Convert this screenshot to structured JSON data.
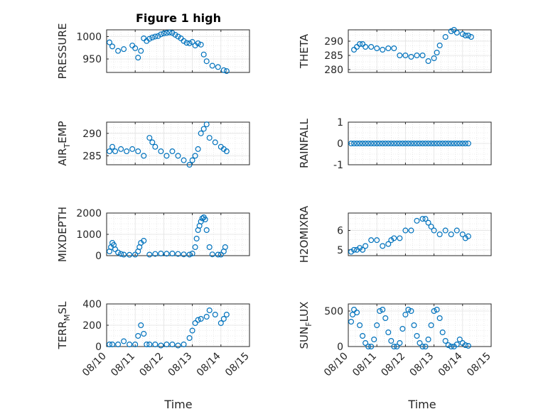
{
  "figure": {
    "title": "Figure 1 high",
    "xlabel": "Time",
    "x_ticklabels": [
      "08/10",
      "08/11",
      "08/12",
      "08/13",
      "08/14",
      "08/15"
    ],
    "marker_color": "#0072BD"
  },
  "chart_data": [
    {
      "id": "pressure",
      "type": "scatter",
      "ylabel": "PRESSURE",
      "xlim": [
        0,
        5
      ],
      "ylim": [
        920,
        1015
      ],
      "yticks": [
        950,
        1000
      ],
      "x": [
        0.1,
        0.2,
        0.4,
        0.6,
        0.9,
        1.0,
        1.1,
        1.2,
        1.3,
        1.4,
        1.5,
        1.6,
        1.7,
        1.8,
        1.9,
        2.0,
        2.1,
        2.2,
        2.3,
        2.4,
        2.5,
        2.6,
        2.7,
        2.8,
        2.9,
        3.0,
        3.1,
        3.2,
        3.3,
        3.4,
        3.5,
        3.7,
        3.9,
        4.1,
        4.2
      ],
      "y": [
        987,
        978,
        968,
        972,
        980,
        974,
        953,
        968,
        996,
        990,
        995,
        998,
        1000,
        1001,
        1005,
        1007,
        1008,
        1009,
        1008,
        1004,
        1000,
        996,
        990,
        986,
        985,
        988,
        980,
        985,
        982,
        960,
        945,
        935,
        932,
        925,
        923
      ]
    },
    {
      "id": "theta",
      "type": "scatter",
      "ylabel": "THETA",
      "xlim": [
        0,
        5
      ],
      "ylim": [
        279,
        294
      ],
      "yticks": [
        280,
        285,
        290
      ],
      "x": [
        0.2,
        0.3,
        0.4,
        0.5,
        0.6,
        0.8,
        1.0,
        1.2,
        1.4,
        1.6,
        1.8,
        2.0,
        2.2,
        2.4,
        2.6,
        2.8,
        3.0,
        3.1,
        3.2,
        3.4,
        3.6,
        3.7,
        3.8,
        4.0,
        4.1,
        4.2,
        4.3
      ],
      "y": [
        287,
        288,
        289,
        289,
        288,
        288,
        287.5,
        287,
        287.5,
        287.5,
        285,
        285,
        284.5,
        285,
        285,
        283,
        284,
        286,
        288.5,
        291.5,
        293.5,
        294,
        293,
        292.5,
        292,
        292,
        291.5
      ]
    },
    {
      "id": "air_temp",
      "type": "scatter",
      "ylabel_main": "AIR",
      "ylabel_sub": "T",
      "ylabel_rest": "EMP",
      "xlim": [
        0,
        5
      ],
      "ylim": [
        283,
        292.5
      ],
      "yticks": [
        285,
        290
      ],
      "x": [
        0.1,
        0.2,
        0.3,
        0.5,
        0.7,
        0.9,
        1.1,
        1.3,
        1.5,
        1.6,
        1.7,
        1.9,
        2.1,
        2.3,
        2.5,
        2.7,
        2.9,
        3.0,
        3.1,
        3.2,
        3.3,
        3.4,
        3.5,
        3.6,
        3.8,
        4.0,
        4.1,
        4.2
      ],
      "y": [
        286,
        287,
        286,
        286.5,
        286,
        286.5,
        286,
        285,
        289,
        288,
        287,
        286,
        285,
        286,
        285,
        284,
        283,
        284,
        285,
        286.5,
        290,
        291,
        292,
        289,
        288,
        287,
        286.5,
        286
      ]
    },
    {
      "id": "rainfall",
      "type": "scatter",
      "ylabel": "RAINFALL",
      "xlim": [
        0,
        5
      ],
      "ylim": [
        -1,
        1
      ],
      "yticks": [
        -1,
        0,
        1
      ],
      "x": [
        0.1,
        0.2,
        0.3,
        0.4,
        0.5,
        0.6,
        0.7,
        0.8,
        0.9,
        1.0,
        1.1,
        1.2,
        1.3,
        1.4,
        1.5,
        1.6,
        1.7,
        1.8,
        1.9,
        2.0,
        2.1,
        2.2,
        2.3,
        2.4,
        2.5,
        2.6,
        2.7,
        2.8,
        2.9,
        3.0,
        3.1,
        3.2,
        3.3,
        3.4,
        3.5,
        3.6,
        3.7,
        3.8,
        3.9,
        4.0,
        4.1,
        4.2
      ],
      "y": [
        0,
        0,
        0,
        0,
        0,
        0,
        0,
        0,
        0,
        0,
        0,
        0,
        0,
        0,
        0,
        0,
        0,
        0,
        0,
        0,
        0,
        0,
        0,
        0,
        0,
        0,
        0,
        0,
        0,
        0,
        0,
        0,
        0,
        0,
        0,
        0,
        0,
        0,
        0,
        0,
        0,
        0
      ]
    },
    {
      "id": "mixdepth",
      "type": "scatter",
      "ylabel": "MIXDEPTH",
      "xlim": [
        0,
        5
      ],
      "ylim": [
        0,
        2000
      ],
      "yticks": [
        0,
        1000,
        2000
      ],
      "x": [
        0.1,
        0.15,
        0.2,
        0.25,
        0.3,
        0.4,
        0.5,
        0.6,
        0.8,
        1.0,
        1.1,
        1.15,
        1.2,
        1.3,
        1.5,
        1.7,
        1.9,
        2.1,
        2.3,
        2.5,
        2.7,
        2.9,
        3.0,
        3.1,
        3.15,
        3.2,
        3.25,
        3.3,
        3.35,
        3.4,
        3.45,
        3.5,
        3.6,
        3.7,
        3.9,
        4.0,
        4.1,
        4.15
      ],
      "y": [
        200,
        400,
        600,
        500,
        300,
        150,
        80,
        50,
        40,
        50,
        200,
        400,
        600,
        700,
        50,
        80,
        100,
        90,
        100,
        80,
        60,
        50,
        100,
        400,
        800,
        1200,
        1400,
        1600,
        1750,
        1800,
        1700,
        1200,
        400,
        60,
        50,
        50,
        200,
        400
      ]
    },
    {
      "id": "h2omixra",
      "type": "scatter",
      "ylabel": "H2OMIXRA",
      "xlim": [
        0,
        5
      ],
      "ylim": [
        4.7,
        6.9
      ],
      "yticks": [
        5,
        6
      ],
      "x": [
        0.1,
        0.2,
        0.3,
        0.4,
        0.5,
        0.6,
        0.8,
        1.0,
        1.2,
        1.4,
        1.5,
        1.6,
        1.8,
        2.0,
        2.2,
        2.4,
        2.6,
        2.7,
        2.8,
        2.9,
        3.0,
        3.2,
        3.4,
        3.6,
        3.8,
        4.0,
        4.1,
        4.2
      ],
      "y": [
        4.9,
        5.0,
        5.0,
        5.1,
        5.0,
        5.2,
        5.5,
        5.5,
        5.2,
        5.3,
        5.5,
        5.6,
        5.6,
        6.0,
        6.0,
        6.5,
        6.6,
        6.6,
        6.4,
        6.2,
        6.0,
        5.8,
        6.0,
        5.8,
        6.0,
        5.8,
        5.6,
        5.7
      ]
    },
    {
      "id": "terr_msl",
      "type": "scatter",
      "ylabel_main": "TERR",
      "ylabel_sub": "M",
      "ylabel_rest": "SL",
      "xlim": [
        0,
        5
      ],
      "ylim": [
        0,
        400
      ],
      "yticks": [
        0,
        200,
        400
      ],
      "x": [
        0.1,
        0.2,
        0.4,
        0.6,
        0.8,
        1.0,
        1.1,
        1.2,
        1.3,
        1.4,
        1.5,
        1.7,
        1.9,
        2.1,
        2.3,
        2.5,
        2.7,
        2.9,
        3.0,
        3.1,
        3.2,
        3.3,
        3.5,
        3.6,
        3.8,
        4.0,
        4.1,
        4.2
      ],
      "y": [
        20,
        20,
        20,
        50,
        20,
        20,
        100,
        200,
        120,
        20,
        20,
        20,
        10,
        20,
        20,
        10,
        20,
        80,
        150,
        220,
        250,
        260,
        280,
        340,
        300,
        220,
        260,
        300
      ]
    },
    {
      "id": "sun_flux",
      "type": "scatter",
      "ylabel_main": "SUN",
      "ylabel_sub": "F",
      "ylabel_rest": "LUX",
      "xlim": [
        0,
        5
      ],
      "ylim": [
        0,
        600
      ],
      "yticks": [
        0,
        500
      ],
      "x": [
        0.1,
        0.15,
        0.2,
        0.3,
        0.4,
        0.5,
        0.6,
        0.7,
        0.8,
        0.9,
        1.0,
        1.1,
        1.2,
        1.3,
        1.4,
        1.5,
        1.6,
        1.7,
        1.8,
        1.9,
        2.0,
        2.1,
        2.2,
        2.3,
        2.4,
        2.5,
        2.6,
        2.7,
        2.8,
        2.9,
        3.0,
        3.1,
        3.2,
        3.3,
        3.4,
        3.5,
        3.6,
        3.7,
        3.8,
        3.9,
        4.0,
        4.1,
        4.2
      ],
      "y": [
        350,
        450,
        520,
        480,
        300,
        150,
        50,
        0,
        0,
        100,
        300,
        500,
        520,
        400,
        200,
        80,
        0,
        0,
        50,
        250,
        450,
        520,
        500,
        300,
        150,
        50,
        0,
        0,
        100,
        300,
        500,
        520,
        400,
        200,
        80,
        20,
        0,
        0,
        30,
        100,
        50,
        20,
        10
      ]
    }
  ]
}
